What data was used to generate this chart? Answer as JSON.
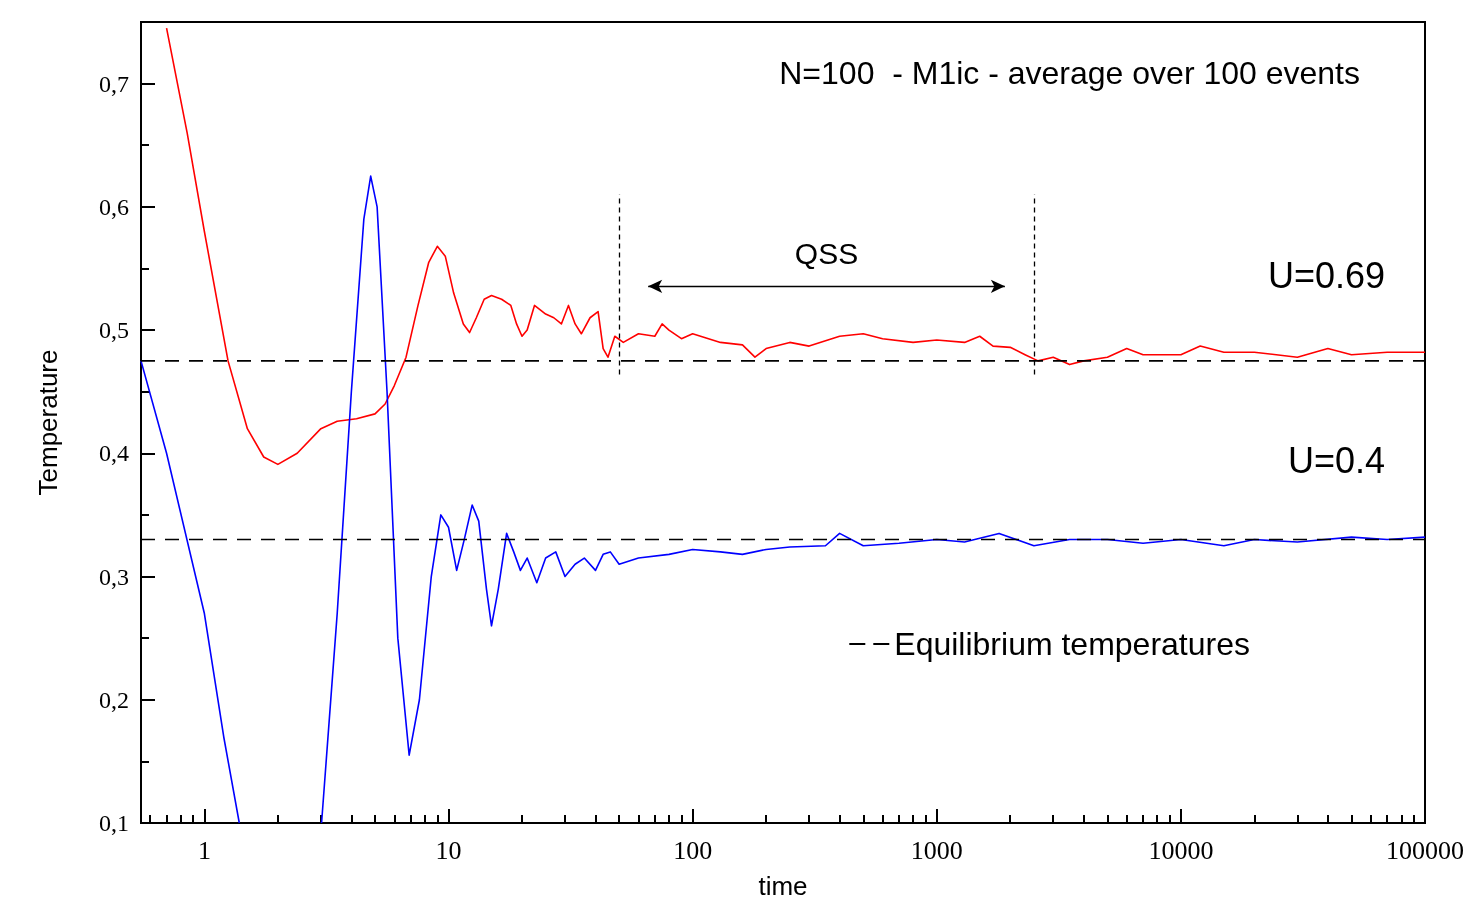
{
  "chart_data": {
    "type": "line",
    "title": "N=100  - M1ic - average over 100 events",
    "xlabel": "time",
    "ylabel": "Temperature",
    "log": "x",
    "xlim": [
      0.55,
      100000
    ],
    "xticks": [
      1,
      10,
      100,
      1000,
      10000,
      100000
    ],
    "ylim": [
      0.1,
      0.75
    ],
    "yticks": [
      {
        "value": 0.1,
        "label": "0,1"
      },
      {
        "value": 0.2,
        "label": "0,2"
      },
      {
        "value": 0.3,
        "label": "0,3"
      },
      {
        "value": 0.4,
        "label": "0,4"
      },
      {
        "value": 0.5,
        "label": "0,5"
      },
      {
        "value": 0.6,
        "label": "0,6"
      },
      {
        "value": 0.7,
        "label": "0,7"
      }
    ],
    "grid": false,
    "marker": "none",
    "legend": "bottom right",
    "annotations": [
      "QSS"
    ],
    "ref_lines": [
      {
        "axis": "x",
        "value": 50,
        "color": "#000000",
        "line_style": "dashed"
      },
      {
        "axis": "x",
        "value": 2500,
        "color": "#000000",
        "line_style": "dashed"
      }
    ],
    "series": [
      {
        "name": "U=0.69",
        "color": "#ff0000",
        "line_style": "solid",
        "x": [
          0.7,
          0.85,
          1,
          1.25,
          1.5,
          1.75,
          2,
          2.4,
          3,
          3.5,
          4.2,
          5,
          5.5,
          6,
          6.7,
          7.5,
          8.3,
          9,
          9.7,
          10.5,
          11.5,
          12.2,
          13,
          14,
          15,
          16.5,
          18,
          19,
          20,
          21,
          22.5,
          25,
          27,
          29,
          31,
          33,
          35,
          38,
          41,
          43,
          45,
          48,
          52,
          60,
          70,
          75,
          80,
          90,
          100,
          130,
          160,
          180,
          200,
          250,
          300,
          400,
          500,
          600,
          800,
          1000,
          1300,
          1500,
          1700,
          2000,
          2300,
          2600,
          3000,
          3500,
          4000,
          5000,
          6000,
          7000,
          10000,
          12000,
          15000,
          20000,
          30000,
          40000,
          50000,
          70000,
          100000
        ],
        "values": [
          0.745,
          0.66,
          0.58,
          0.475,
          0.42,
          0.397,
          0.391,
          0.4,
          0.42,
          0.426,
          0.428,
          0.432,
          0.44,
          0.455,
          0.478,
          0.52,
          0.555,
          0.568,
          0.56,
          0.53,
          0.505,
          0.498,
          0.51,
          0.525,
          0.528,
          0.525,
          0.52,
          0.505,
          0.495,
          0.5,
          0.52,
          0.513,
          0.51,
          0.505,
          0.52,
          0.505,
          0.497,
          0.51,
          0.515,
          0.485,
          0.478,
          0.495,
          0.49,
          0.497,
          0.495,
          0.505,
          0.5,
          0.493,
          0.497,
          0.49,
          0.488,
          0.478,
          0.485,
          0.49,
          0.487,
          0.495,
          0.497,
          0.493,
          0.49,
          0.492,
          0.49,
          0.495,
          0.487,
          0.486,
          0.48,
          0.475,
          0.478,
          0.472,
          0.475,
          0.478,
          0.485,
          0.48,
          0.48,
          0.487,
          0.482,
          0.482,
          0.478,
          0.485,
          0.48,
          0.482,
          0.482
        ]
      },
      {
        "name": "U=0.4",
        "color": "#0000ff",
        "line_style": "solid",
        "x": [
          0.55,
          0.7,
          1,
          1.2,
          1.39,
          2,
          3.02,
          3.5,
          4,
          4.5,
          4.8,
          5.1,
          5.6,
          6.2,
          6.9,
          7.6,
          8.5,
          9.3,
          10,
          10.8,
          11.6,
          12.5,
          13.3,
          14.3,
          15,
          16,
          17.3,
          18.5,
          19.7,
          21,
          23,
          25,
          27.5,
          30,
          33,
          36,
          40,
          43,
          46,
          50,
          60,
          80,
          100,
          130,
          160,
          200,
          250,
          350,
          400,
          500,
          700,
          1000,
          1300,
          1800,
          2500,
          3500,
          5000,
          7000,
          10000,
          15000,
          20000,
          30000,
          50000,
          70000,
          100000
        ],
        "values": [
          0.475,
          0.4,
          0.27,
          0.17,
          0.1,
          null,
          0.1,
          0.27,
          0.45,
          0.59,
          0.625,
          0.6,
          0.45,
          0.25,
          0.155,
          0.2,
          0.3,
          0.35,
          0.34,
          0.305,
          0.33,
          0.358,
          0.345,
          0.29,
          0.26,
          0.29,
          0.335,
          0.32,
          0.305,
          0.315,
          0.295,
          0.315,
          0.32,
          0.3,
          0.31,
          0.315,
          0.305,
          0.318,
          0.32,
          0.31,
          0.315,
          0.318,
          0.322,
          0.32,
          0.318,
          0.322,
          0.324,
          0.325,
          0.335,
          0.325,
          0.327,
          0.33,
          0.328,
          0.335,
          0.325,
          0.33,
          0.33,
          0.327,
          0.33,
          0.325,
          0.33,
          0.328,
          0.332,
          0.33,
          0.332
        ]
      },
      {
        "name": "Equilibrium temperatures",
        "color": "#000000",
        "line_style": "dashed",
        "x": [
          0.55,
          100000
        ],
        "values": [
          0.475,
          0.475
        ]
      },
      {
        "color": "#000000",
        "line_style": "dashed",
        "x": [
          0.55,
          100000
        ],
        "values": [
          0.33,
          0.33
        ]
      }
    ]
  }
}
